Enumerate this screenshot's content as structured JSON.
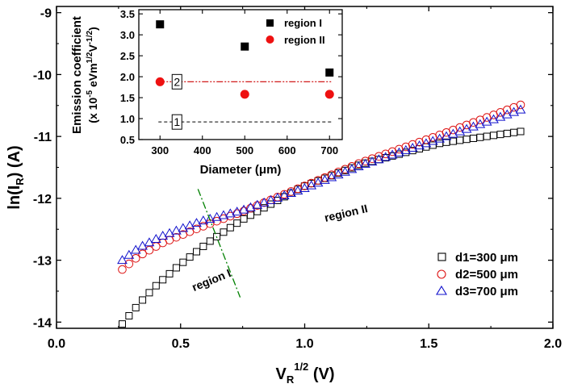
{
  "colors": {
    "axis": "#000000",
    "series1": "#000000",
    "series2": "#dd1111",
    "series3": "#1111cc",
    "region_divider": "#008000",
    "inset_region1": "#000000",
    "inset_region2": "#ee1111",
    "inset_line2": "#cc0000",
    "inset_line1": "#000000"
  },
  "chart_data": [
    {
      "type": "scatter",
      "xlabel": {
        "main": "V",
        "sub": "R",
        "sup": "1/2",
        "unit": " (V)"
      },
      "ylabel": {
        "main": "ln(I",
        "sub": "R",
        "tail": ") (A)"
      },
      "xlim": [
        0.0,
        2.0
      ],
      "ylim": [
        -14.1,
        -8.9
      ],
      "xticks": [
        0.0,
        0.5,
        1.0,
        1.5,
        2.0
      ],
      "xtick_labels": [
        "0.0",
        "0.5",
        "1.0",
        "1.5",
        "2.0"
      ],
      "yticks": [
        -14,
        -13,
        -12,
        -11,
        -10,
        -9
      ],
      "ytick_labels": [
        "-14",
        "-13",
        "-12",
        "-11",
        "-10",
        "-9"
      ],
      "grid": false,
      "legend_position": "bottom-right",
      "series": [
        {
          "name": "d1=300 μm",
          "marker": "square",
          "start": [
            0.265,
            -14.03
          ],
          "end": [
            1.87,
            -10.92
          ],
          "n": 60,
          "shape": [
            [
              0,
              0
            ],
            [
              0.04,
              0.1
            ],
            [
              0.08,
              0.19
            ],
            [
              0.14,
              0.3
            ],
            [
              0.22,
              0.43
            ],
            [
              0.3,
              0.54
            ],
            [
              0.45,
              0.71
            ],
            [
              0.6,
              0.83
            ],
            [
              0.8,
              0.94
            ],
            [
              1.0,
              1.0
            ]
          ]
        },
        {
          "name": "d2=500 μm",
          "marker": "circle",
          "start": [
            0.265,
            -13.15
          ],
          "end": [
            1.87,
            -10.49
          ],
          "n": 60,
          "shape": [
            [
              0,
              0
            ],
            [
              0.04,
              0.08
            ],
            [
              0.1,
              0.16
            ],
            [
              0.2,
              0.26
            ],
            [
              0.3,
              0.35
            ],
            [
              0.45,
              0.5
            ],
            [
              0.6,
              0.65
            ],
            [
              0.8,
              0.82
            ],
            [
              1.0,
              1.0
            ]
          ]
        },
        {
          "name": "d3=700 μm",
          "marker": "triangle",
          "start": [
            0.265,
            -13.0
          ],
          "end": [
            1.87,
            -10.57
          ],
          "n": 60,
          "shape": [
            [
              0,
              0
            ],
            [
              0.04,
              0.08
            ],
            [
              0.1,
              0.16
            ],
            [
              0.2,
              0.26
            ],
            [
              0.3,
              0.33
            ],
            [
              0.45,
              0.47
            ],
            [
              0.6,
              0.63
            ],
            [
              0.8,
              0.81
            ],
            [
              1.0,
              1.0
            ]
          ]
        }
      ],
      "region_divider": {
        "x1": 0.57,
        "y1": -11.85,
        "x2": 0.74,
        "y2": -13.6
      },
      "annotations": [
        {
          "text": "region II",
          "x": 1.17,
          "y": -12.3,
          "rotate": -13
        },
        {
          "text": "region I",
          "x": 0.63,
          "y": -13.38,
          "rotate": -22
        }
      ]
    },
    {
      "type": "scatter",
      "xlabel": "Diameter (μm)",
      "ylabel_line1": "Emission coefficient",
      "ylabel_line2": {
        "a": "(x 10",
        "a_sup": "-5",
        "b": " eVm",
        "b_sup": "1/2",
        "c": "V",
        "c_sup": "-1/2",
        "d": ")"
      },
      "xlim": [
        250,
        730
      ],
      "ylim": [
        0.5,
        3.6
      ],
      "xticks": [
        300,
        400,
        500,
        600,
        700
      ],
      "xtick_labels": [
        "300",
        "400",
        "500",
        "600",
        "700"
      ],
      "yticks": [
        0.5,
        1.0,
        1.5,
        2.0,
        2.5,
        3.0,
        3.5
      ],
      "ytick_labels": [
        "0.5",
        "1.0",
        "1.5",
        "2.0",
        "2.5",
        "3.0",
        "3.5"
      ],
      "legend_position": "top-right",
      "series": [
        {
          "name": "region I",
          "marker": "square",
          "x": [
            300,
            500,
            700
          ],
          "y": [
            3.25,
            2.72,
            2.1
          ]
        },
        {
          "name": "region II",
          "marker": "circle",
          "x": [
            300,
            500,
            700
          ],
          "y": [
            1.88,
            1.58,
            1.58
          ]
        }
      ],
      "reference_lines": [
        {
          "label": "2",
          "y": 1.88,
          "style": "dash-dot-dot",
          "label_x": 340
        },
        {
          "label": "1",
          "y": 0.92,
          "style": "dashed",
          "label_x": 340
        }
      ]
    }
  ]
}
